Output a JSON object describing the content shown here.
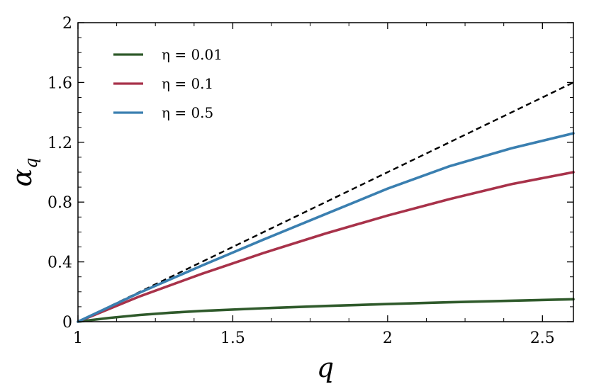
{
  "chart_data": {
    "type": "line",
    "xlabel": "q",
    "ylabel": "α_q",
    "ylabel_main": "α",
    "ylabel_sub": "q",
    "xlim": [
      1,
      2.6
    ],
    "ylim": [
      0,
      2
    ],
    "xticks": [
      1,
      1.5,
      2,
      2.5
    ],
    "xtick_labels": [
      "1",
      "1.5",
      "2",
      "2.5"
    ],
    "yticks": [
      0,
      0.4,
      0.8,
      1.2,
      1.6,
      2
    ],
    "ytick_labels": [
      "0",
      "0.4",
      "0.8",
      "1.2",
      "1.6",
      "2"
    ],
    "grid": false,
    "legend_position": "top-left",
    "series": [
      {
        "name": "η = 0.01",
        "color": "#2f5a2b",
        "style": "solid",
        "x": [
          1.0,
          1.1,
          1.2,
          1.3,
          1.4,
          1.6,
          1.8,
          2.0,
          2.2,
          2.4,
          2.6
        ],
        "y": [
          0.0,
          0.025,
          0.045,
          0.06,
          0.072,
          0.09,
          0.105,
          0.118,
          0.13,
          0.14,
          0.15
        ]
      },
      {
        "name": "η = 0.1",
        "color": "#a8324a",
        "style": "solid",
        "x": [
          1.0,
          1.2,
          1.4,
          1.6,
          1.8,
          2.0,
          2.2,
          2.4,
          2.6
        ],
        "y": [
          0.0,
          0.17,
          0.32,
          0.46,
          0.59,
          0.71,
          0.82,
          0.92,
          1.0
        ]
      },
      {
        "name": "η = 0.5",
        "color": "#3a7fb0",
        "style": "solid",
        "x": [
          1.0,
          1.2,
          1.4,
          1.6,
          1.8,
          2.0,
          2.2,
          2.4,
          2.6
        ],
        "y": [
          0.0,
          0.195,
          0.375,
          0.55,
          0.72,
          0.89,
          1.04,
          1.16,
          1.26
        ]
      },
      {
        "color": "#000000",
        "style": "dashed",
        "x": [
          1.0,
          2.6
        ],
        "y": [
          0.0,
          1.6
        ]
      }
    ]
  }
}
